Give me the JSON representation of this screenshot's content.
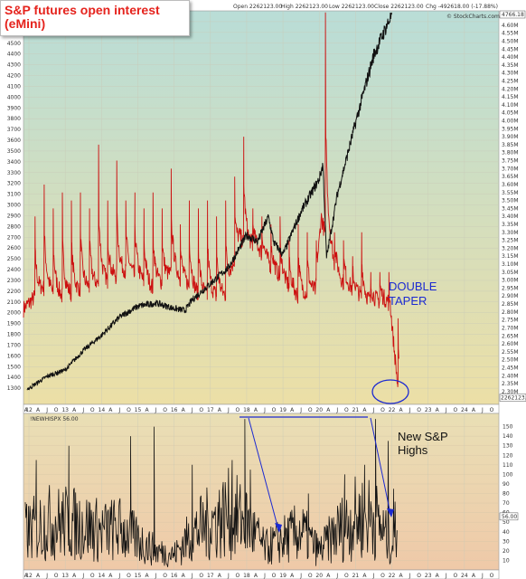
{
  "header": {
    "open": "Open 2262123.00",
    "high": "High 2262123.00",
    "low": "Low 2262123.00",
    "close": "Close 2262123.00",
    "chg": "Chg -492618.00 (-17.88%)",
    "watermark": "© StockCharts.com"
  },
  "title": {
    "line1": "S&P futures open interest",
    "line2": "(eMini)"
  },
  "colors": {
    "upper_bg_top": "#b9ddd7",
    "upper_bg_bottom": "#ecdfa6",
    "lower_bg_top": "#e9dfb5",
    "lower_bg_bottom": "#efc9a8",
    "open_interest": "#cc1010",
    "sp500": "#111111",
    "annotation": "#1c2ad1"
  },
  "annotations": {
    "double_taper": [
      "DOUBLE",
      "TAPER"
    ],
    "new_highs": [
      "New S&P",
      "Highs"
    ]
  },
  "chart_data": [
    {
      "type": "line",
      "panel": "upper",
      "x_years": [
        "12",
        "13",
        "14",
        "15",
        "16",
        "17",
        "18",
        "19",
        "20",
        "21",
        "22",
        "23",
        "24"
      ],
      "x_month_letters": [
        "A",
        "J",
        "O"
      ],
      "left_axis": {
        "ylim": [
          1150,
          4800
        ],
        "ticks": [
          1300,
          1400,
          1500,
          1600,
          1700,
          1800,
          1900,
          2000,
          2100,
          2200,
          2300,
          2400,
          2500,
          2600,
          2700,
          2800,
          2900,
          3000,
          3100,
          3200,
          3300,
          3400,
          3500,
          3600,
          3700,
          3800,
          3900,
          4000,
          4100,
          4200,
          4300,
          4400,
          4500,
          4600,
          4700
        ]
      },
      "right_axis": {
        "ylim": [
          2220000,
          4690000
        ],
        "ticks": [
          "2.30M",
          "2.35M",
          "2.40M",
          "2.45M",
          "2.50M",
          "2.55M",
          "2.60M",
          "2.65M",
          "2.70M",
          "2.75M",
          "2.80M",
          "2.85M",
          "2.90M",
          "2.95M",
          "3.00M",
          "3.05M",
          "3.10M",
          "3.15M",
          "3.20M",
          "3.25M",
          "3.30M",
          "3.35M",
          "3.40M",
          "3.45M",
          "3.50M",
          "3.55M",
          "3.60M",
          "3.65M",
          "3.70M",
          "3.75M",
          "3.80M",
          "3.85M",
          "3.90M",
          "3.95M",
          "4.00M",
          "4.05M",
          "4.10M",
          "4.15M",
          "4.20M",
          "4.25M",
          "4.30M",
          "4.35M",
          "4.40M",
          "4.45M",
          "4.50M",
          "4.55M",
          "4.60M"
        ],
        "last_value_label": "2262123.00",
        "top_value_label": "4766.18"
      },
      "series": [
        {
          "axis": "left",
          "x": [
            2012.0,
            2012.5,
            2013.0,
            2013.5,
            2014.0,
            2014.5,
            2015.0,
            2015.5,
            2016.0,
            2016.3,
            2016.5,
            2017.0,
            2017.5,
            2018.0,
            2018.3,
            2018.6,
            2018.75,
            2019.0,
            2019.5,
            2020.0,
            2020.1,
            2020.2,
            2020.5,
            2021.0,
            2021.5,
            2022.0
          ],
          "values": [
            1300,
            1410,
            1470,
            1650,
            1790,
            1960,
            2060,
            2090,
            2040,
            2020,
            2120,
            2270,
            2420,
            2720,
            2660,
            2890,
            2650,
            2540,
            2940,
            3240,
            3380,
            2510,
            3100,
            3760,
            4390,
            4766
          ]
        },
        {
          "axis": "right",
          "x": [
            2011.85,
            2012.4,
            2012.9,
            2013.6,
            2014.2,
            2014.7,
            2015.4,
            2016.0,
            2016.7,
            2017.4,
            2017.8,
            2018.3,
            2018.8,
            2019.4,
            2019.9,
            2020.05,
            2020.25,
            2020.6,
            2021.3,
            2021.9,
            2022.05,
            2022.2
          ],
          "values": [
            2820000,
            2950000,
            2900000,
            2950000,
            3000000,
            3060000,
            2950000,
            3050000,
            2900000,
            2900000,
            3250000,
            3200000,
            3050000,
            2900000,
            2930000,
            3400000,
            3200000,
            3000000,
            2870000,
            2870000,
            2560000,
            2262123
          ],
          "spikes": [
            [
              2012.17,
              3400000
            ],
            [
              2012.42,
              3600000
            ],
            [
              2012.67,
              3450000
            ],
            [
              2012.92,
              3550000
            ],
            [
              2013.17,
              3500000
            ],
            [
              2013.42,
              3550000
            ],
            [
              2013.67,
              3450000
            ],
            [
              2013.92,
              3850000
            ],
            [
              2014.17,
              3500000
            ],
            [
              2014.42,
              3750000
            ],
            [
              2014.67,
              3500000
            ],
            [
              2014.92,
              3550000
            ],
            [
              2015.17,
              3450000
            ],
            [
              2015.42,
              3550000
            ],
            [
              2015.67,
              3450000
            ],
            [
              2015.92,
              3700000
            ],
            [
              2016.17,
              3350000
            ],
            [
              2016.42,
              3500000
            ],
            [
              2016.67,
              3450000
            ],
            [
              2016.92,
              3500000
            ],
            [
              2017.17,
              3400000
            ],
            [
              2017.42,
              3500000
            ],
            [
              2017.67,
              3650000
            ],
            [
              2017.92,
              3900000
            ],
            [
              2018.17,
              3450000
            ],
            [
              2018.42,
              3400000
            ],
            [
              2018.67,
              3350000
            ],
            [
              2018.92,
              3400000
            ],
            [
              2019.17,
              3250000
            ],
            [
              2019.42,
              3350000
            ],
            [
              2019.67,
              3300000
            ],
            [
              2019.92,
              3250000
            ],
            [
              2020.17,
              4680000
            ],
            [
              2020.42,
              3300000
            ],
            [
              2020.67,
              3250000
            ],
            [
              2020.92,
              3150000
            ],
            [
              2021.17,
              3300000
            ],
            [
              2021.42,
              3050000
            ],
            [
              2021.67,
              3050000
            ],
            [
              2021.92,
              3050000
            ],
            [
              2022.17,
              2760000
            ]
          ]
        }
      ]
    },
    {
      "type": "line",
      "panel": "lower",
      "series_label": "!NEWHISPX 56.00",
      "last_value_label": "56.00",
      "ylim": [
        0,
        160
      ],
      "ticks": [
        10,
        20,
        30,
        40,
        50,
        60,
        70,
        80,
        90,
        100,
        110,
        120,
        130,
        140,
        150
      ],
      "x_years": [
        "12",
        "13",
        "14",
        "15",
        "16",
        "17",
        "18",
        "19",
        "20",
        "21",
        "22",
        "23",
        "24"
      ],
      "x_month_letters": [
        "A",
        "J",
        "O"
      ],
      "series": [
        {
          "x": [
            2012.0,
            2012.5,
            2013.0,
            2013.5,
            2014.0,
            2014.5,
            2015.0,
            2015.5,
            2016.0,
            2016.5,
            2017.0,
            2017.5,
            2018.0,
            2018.5,
            2019.0,
            2019.5,
            2020.0,
            2020.5,
            2021.0,
            2021.5,
            2022.0,
            2022.15
          ],
          "values": [
            45,
            55,
            55,
            52,
            45,
            48,
            35,
            22,
            18,
            42,
            55,
            65,
            55,
            25,
            35,
            45,
            22,
            45,
            60,
            62,
            28,
            56
          ],
          "spikes": [
            [
              2012.2,
              115
            ],
            [
              2013.1,
              130
            ],
            [
              2014.8,
              140
            ],
            [
              2015.45,
              150
            ],
            [
              2016.5,
              110
            ],
            [
              2017.6,
              115
            ],
            [
              2017.95,
              158
            ],
            [
              2018.1,
              105
            ],
            [
              2019.7,
              80
            ],
            [
              2020.7,
              100
            ],
            [
              2021.25,
              110
            ],
            [
              2021.55,
              158
            ],
            [
              2021.9,
              135
            ],
            [
              2022.05,
              85
            ]
          ]
        }
      ]
    }
  ]
}
